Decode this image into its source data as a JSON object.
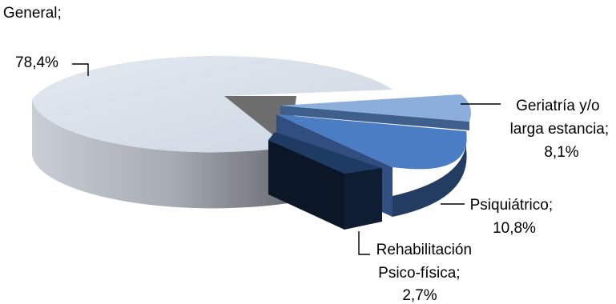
{
  "chart_data": {
    "type": "pie",
    "style": "3d-exploded",
    "slices": [
      {
        "label": "General",
        "value": 78.4,
        "label_line1": "General;",
        "label_line2": "78,4%",
        "color": "#D9E1EC",
        "color_side": "#8E9299"
      },
      {
        "label": "Geriatría y/o larga estancia",
        "value": 8.1,
        "label_line1": "Geriatría y/o",
        "label_line2": "larga estancia;",
        "label_line3": "8,1%",
        "color": "#8CAEDB",
        "color_side": "#647FA6"
      },
      {
        "label": "Psiquiátrico",
        "value": 10.8,
        "label_line1": "Psiquiátrico;",
        "label_line2": "10,8%",
        "color": "#4A7DC4",
        "color_side": "#233C62"
      },
      {
        "label": "Rehabilitación Psico-física",
        "value": 2.7,
        "label_line1": "Rehabilitación",
        "label_line2": "Psico-física;",
        "label_line3": "2,7%",
        "color": "#1E3B64",
        "color_side": "#0B1627"
      }
    ],
    "legend": "none",
    "gap_color": "#6D6D6D"
  }
}
